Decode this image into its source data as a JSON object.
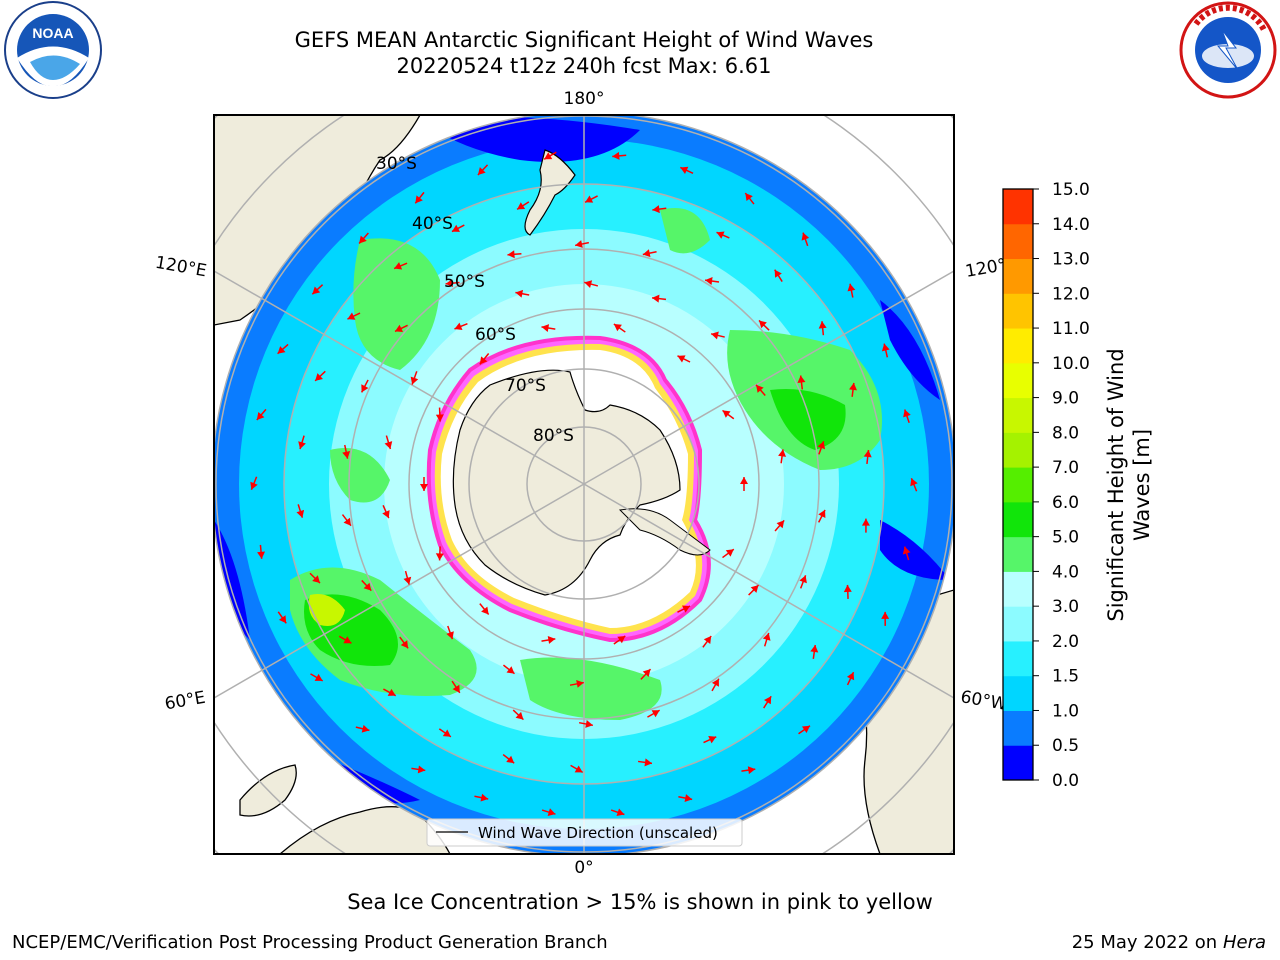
{
  "header": {
    "title_line1": "GEFS MEAN Antarctic Significant Height of Wind Waves",
    "title_line2": "20220524 t12z 240h fcst   Max: 6.61"
  },
  "logos": {
    "left": "noaa-logo",
    "left_text": "NOAA",
    "left_ring_text": "NATIONAL OCEANIC AND ATMOSPHERIC ADMINISTRATION · U.S. DEPARTMENT OF COMMERCE",
    "right": "nws-logo",
    "right_ring_text": "NATIONAL WEATHER SERVICE"
  },
  "map": {
    "projection": "south-polar-stereographic",
    "lon_labels": [
      "180°",
      "120°E",
      "120°W",
      "60°E",
      "60°W",
      "0°"
    ],
    "lat_labels": [
      "30°S",
      "40°S",
      "50°S",
      "60°S",
      "70°S",
      "80°S"
    ],
    "legend_label": "Wind Wave Direction (unscaled)",
    "arrow_color": "#ff0000",
    "land_color": "#efecdc"
  },
  "colorbar": {
    "label_line1": "Significant Height of Wind",
    "label_line2": "Waves [m]",
    "ticks": [
      "0.0",
      "0.5",
      "1.0",
      "1.5",
      "2.0",
      "3.0",
      "4.0",
      "5.0",
      "6.0",
      "7.0",
      "8.0",
      "9.0",
      "10.0",
      "11.0",
      "12.0",
      "13.0",
      "14.0",
      "15.0"
    ],
    "colors": [
      "#0000ff",
      "#0a7cff",
      "#00d6ff",
      "#27f0ff",
      "#8cfbff",
      "#b8ffff",
      "#56f569",
      "#11e50a",
      "#55ee00",
      "#a5f200",
      "#c8f700",
      "#e8ff00",
      "#ffec00",
      "#ffc400",
      "#ff9900",
      "#ff6600",
      "#ff3300",
      "#ff0000"
    ]
  },
  "captions": {
    "ice": "Sea Ice Concentration > 15% is shown in pink to yellow"
  },
  "footer": {
    "left": "NCEP/EMC/Verification Post Processing Product Generation Branch",
    "right_date": "25 May 2022 on",
    "right_system": "Hera"
  }
}
